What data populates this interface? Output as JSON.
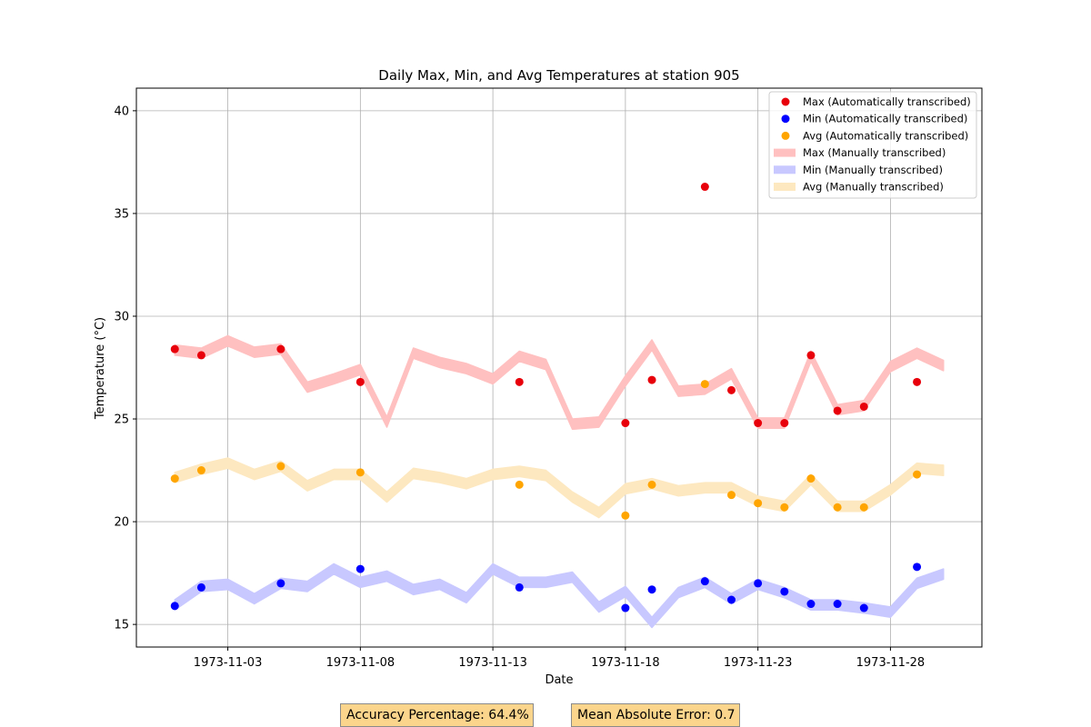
{
  "chart_data": {
    "type": "line",
    "title": "Daily Max, Min, and Avg Temperatures at station 905",
    "xlabel": "Date",
    "ylabel": "Temperature (°C)",
    "xlim": [
      "1972-10-30",
      "1973-12-01"
    ],
    "ylim": [
      13.9,
      41.1
    ],
    "y_ticks": [
      15,
      20,
      25,
      30,
      35,
      40
    ],
    "x_ticks": [
      "1973-11-03",
      "1973-11-08",
      "1973-11-13",
      "1973-11-18",
      "1973-11-23",
      "1973-11-28"
    ],
    "grid": true,
    "legend_position": "top-right",
    "dates": [
      "1973-11-01",
      "1973-11-02",
      "1973-11-03",
      "1973-11-04",
      "1973-11-05",
      "1973-11-06",
      "1973-11-07",
      "1973-11-08",
      "1973-11-09",
      "1973-11-10",
      "1973-11-11",
      "1973-11-12",
      "1973-11-13",
      "1973-11-14",
      "1973-11-15",
      "1973-11-16",
      "1973-11-17",
      "1973-11-18",
      "1973-11-19",
      "1973-11-20",
      "1973-11-21",
      "1973-11-22",
      "1973-11-23",
      "1973-11-24",
      "1973-11-25",
      "1973-11-26",
      "1973-11-27",
      "1973-11-28",
      "1973-11-29",
      "1973-11-30"
    ],
    "series": [
      {
        "name": "Max (Automatically transcribed)",
        "kind": "points",
        "color": "#e8000b",
        "points": [
          [
            "1973-11-01",
            28.4
          ],
          [
            "1973-11-02",
            28.1
          ],
          [
            "1973-11-05",
            28.4
          ],
          [
            "1973-11-08",
            26.8
          ],
          [
            "1973-11-14",
            26.8
          ],
          [
            "1973-11-18",
            24.8
          ],
          [
            "1973-11-19",
            26.9
          ],
          [
            "1973-11-21",
            36.3
          ],
          [
            "1973-11-22",
            26.4
          ],
          [
            "1973-11-23",
            24.8
          ],
          [
            "1973-11-24",
            24.8
          ],
          [
            "1973-11-25",
            28.1
          ],
          [
            "1973-11-26",
            25.4
          ],
          [
            "1973-11-27",
            25.6
          ],
          [
            "1973-11-29",
            26.8
          ]
        ]
      },
      {
        "name": "Min (Automatically transcribed)",
        "kind": "points",
        "color": "#0000ff",
        "points": [
          [
            "1973-11-01",
            15.9
          ],
          [
            "1973-11-02",
            16.8
          ],
          [
            "1973-11-05",
            17.0
          ],
          [
            "1973-11-08",
            17.7
          ],
          [
            "1973-11-14",
            16.8
          ],
          [
            "1973-11-18",
            15.8
          ],
          [
            "1973-11-19",
            16.7
          ],
          [
            "1973-11-21",
            17.1
          ],
          [
            "1973-11-22",
            16.2
          ],
          [
            "1973-11-23",
            17.0
          ],
          [
            "1973-11-24",
            16.6
          ],
          [
            "1973-11-25",
            16.0
          ],
          [
            "1973-11-26",
            16.0
          ],
          [
            "1973-11-27",
            15.8
          ],
          [
            "1973-11-29",
            17.8
          ]
        ]
      },
      {
        "name": "Avg (Automatically transcribed)",
        "kind": "points",
        "color": "#ffa500",
        "points": [
          [
            "1973-11-01",
            22.1
          ],
          [
            "1973-11-02",
            22.5
          ],
          [
            "1973-11-05",
            22.7
          ],
          [
            "1973-11-08",
            22.4
          ],
          [
            "1973-11-14",
            21.8
          ],
          [
            "1973-11-18",
            20.3
          ],
          [
            "1973-11-19",
            21.8
          ],
          [
            "1973-11-21",
            26.7
          ],
          [
            "1973-11-22",
            21.3
          ],
          [
            "1973-11-23",
            20.9
          ],
          [
            "1973-11-24",
            20.7
          ],
          [
            "1973-11-25",
            22.1
          ],
          [
            "1973-11-26",
            20.7
          ],
          [
            "1973-11-27",
            20.7
          ],
          [
            "1973-11-29",
            22.3
          ]
        ]
      },
      {
        "name": "Max (Manually transcribed)",
        "kind": "band",
        "color": "#ffc0c0",
        "halfwidth": 0.25,
        "values": [
          28.35,
          28.2,
          28.8,
          28.25,
          28.4,
          26.55,
          26.95,
          27.4,
          24.85,
          28.2,
          27.75,
          27.45,
          26.95,
          28.05,
          27.65,
          24.75,
          24.85,
          26.85,
          28.6,
          26.35,
          26.45,
          27.2,
          24.8,
          24.8,
          28.05,
          25.45,
          25.65,
          27.55,
          28.2,
          27.6
        ]
      },
      {
        "name": "Min (Manually transcribed)",
        "kind": "band",
        "color": "#c8c8ff",
        "halfwidth": 0.25,
        "values": [
          15.95,
          16.85,
          16.95,
          16.25,
          17.0,
          16.85,
          17.7,
          17.05,
          17.35,
          16.7,
          16.95,
          16.3,
          17.7,
          17.05,
          17.05,
          17.3,
          15.85,
          16.6,
          15.1,
          16.55,
          17.05,
          16.25,
          16.95,
          16.55,
          15.95,
          15.95,
          15.8,
          15.6,
          17.0,
          17.45
        ]
      },
      {
        "name": "Avg (Manually transcribed)",
        "kind": "band",
        "color": "#fde8c0",
        "halfwidth": 0.25,
        "values": [
          22.15,
          22.55,
          22.85,
          22.3,
          22.7,
          21.75,
          22.3,
          22.3,
          21.2,
          22.35,
          22.15,
          21.85,
          22.3,
          22.45,
          22.25,
          21.2,
          20.45,
          21.6,
          21.85,
          21.5,
          21.65,
          21.65,
          21.0,
          20.75,
          22.05,
          20.75,
          20.75,
          21.55,
          22.6,
          22.5
        ]
      }
    ]
  },
  "stats": {
    "accuracy_label": "Accuracy Percentage: 64.4%",
    "mae_label": "Mean Absolute Error: 0.7"
  }
}
